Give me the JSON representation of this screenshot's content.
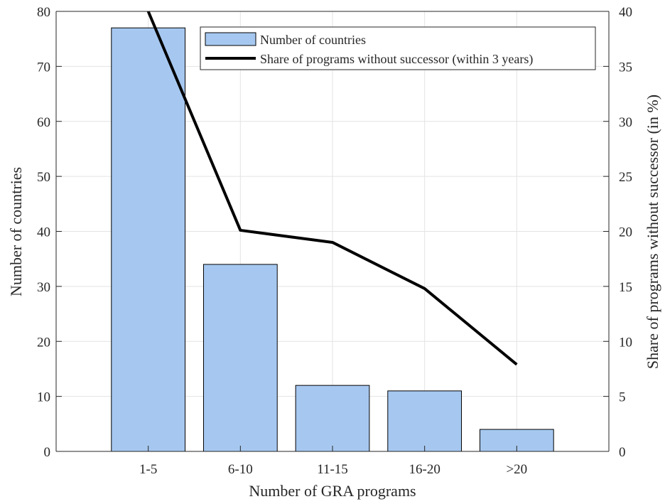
{
  "chart_data": {
    "type": "bar",
    "categories": [
      "1-5",
      "6-10",
      "11-15",
      "16-20",
      ">20"
    ],
    "series": [
      {
        "name": "Number of countries",
        "type": "bar",
        "axis": "left",
        "values": [
          77,
          34,
          12,
          11,
          4
        ],
        "color": "#a6c8f0"
      },
      {
        "name": "Share of programs without successor (within 3 years)",
        "type": "line",
        "axis": "right",
        "x": [
          0,
          1,
          2,
          3,
          4
        ],
        "values": [
          40.0,
          20.1,
          19.0,
          14.8,
          7.9
        ],
        "color": "#000000"
      }
    ],
    "xlabel": "Number of GRA programs",
    "ylabel": "Number of countries",
    "y2label": "Share of programs without successor (in %)",
    "ylim": [
      0,
      80
    ],
    "y2lim": [
      0,
      40
    ],
    "yticks": [
      0,
      10,
      20,
      30,
      40,
      50,
      60,
      70,
      80
    ],
    "y2ticks": [
      0,
      5,
      10,
      15,
      20,
      25,
      30,
      35,
      40
    ],
    "grid": true,
    "legend_position": "top-right"
  }
}
